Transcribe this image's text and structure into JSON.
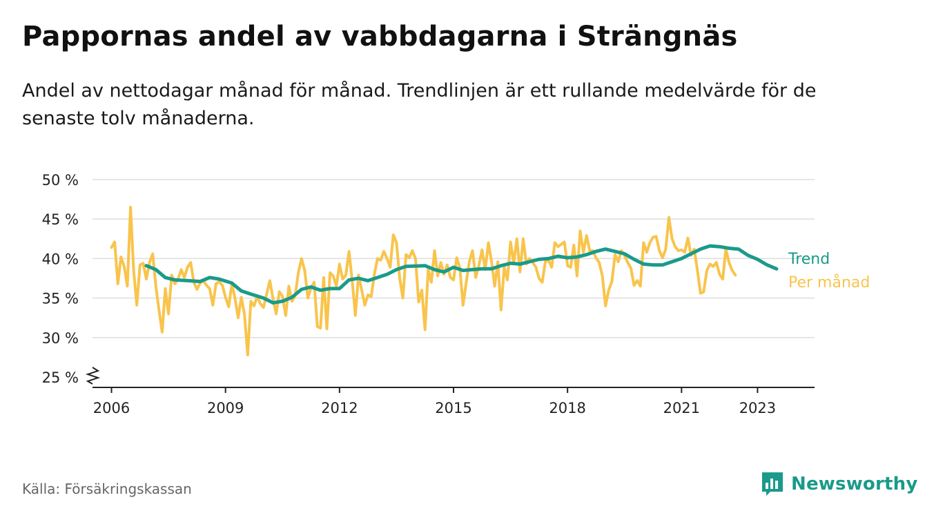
{
  "title": "Pappornas andel av vabbdagarna i Strängnäs",
  "subtitle": "Andel av nettodagar månad för månad. Trendlinjen är ett rullande medelvärde för de senaste tolv månaderna.",
  "source": "Källa: Försäkringskassan",
  "brand": "Newsworthy",
  "colors": {
    "trend": "#1a9a8a",
    "monthly": "#f8c44c",
    "grid": "#dddddd",
    "axis": "#222222",
    "brand": "#1a9a8a"
  },
  "chart_data": {
    "type": "line",
    "title": "Pappornas andel av vabbdagarna i Strängnäs",
    "xlabel": "",
    "ylabel": "",
    "ylim": [
      25,
      50
    ],
    "xlim": [
      "2005-07",
      "2024-07"
    ],
    "y_ticks": [
      "25 %",
      "30 %",
      "35 %",
      "40 %",
      "45 %",
      "50 %"
    ],
    "y_tick_values": [
      25,
      30,
      35,
      40,
      45,
      50
    ],
    "x_ticks": [
      "2006",
      "2009",
      "2012",
      "2015",
      "2018",
      "2021",
      "2023"
    ],
    "x_tick_values": [
      "2006-01",
      "2009-01",
      "2012-01",
      "2015-01",
      "2018-01",
      "2021-01",
      "2023-01"
    ],
    "y_axis_break": true,
    "grid": true,
    "legend": "direct labels at line ends (right)",
    "series": [
      {
        "name": "Trend",
        "color": "#1a9a8a",
        "points": [
          [
            "2006-12",
            39.1
          ],
          [
            "2007-03",
            38.6
          ],
          [
            "2007-06",
            37.6
          ],
          [
            "2007-09",
            37.3
          ],
          [
            "2008-01",
            37.2
          ],
          [
            "2008-05",
            37.1
          ],
          [
            "2008-08",
            37.6
          ],
          [
            "2008-11",
            37.4
          ],
          [
            "2009-03",
            36.9
          ],
          [
            "2009-06",
            35.9
          ],
          [
            "2009-09",
            35.5
          ],
          [
            "2010-01",
            35.0
          ],
          [
            "2010-04",
            34.4
          ],
          [
            "2010-07",
            34.6
          ],
          [
            "2010-10",
            35.1
          ],
          [
            "2011-01",
            36.1
          ],
          [
            "2011-04",
            36.4
          ],
          [
            "2011-07",
            36.0
          ],
          [
            "2011-10",
            36.2
          ],
          [
            "2012-01",
            36.2
          ],
          [
            "2012-04",
            37.3
          ],
          [
            "2012-07",
            37.5
          ],
          [
            "2012-10",
            37.2
          ],
          [
            "2013-01",
            37.6
          ],
          [
            "2013-04",
            38.0
          ],
          [
            "2013-07",
            38.6
          ],
          [
            "2013-10",
            39.0
          ],
          [
            "2014-04",
            39.1
          ],
          [
            "2014-07",
            38.6
          ],
          [
            "2014-10",
            38.3
          ],
          [
            "2015-01",
            38.9
          ],
          [
            "2015-04",
            38.5
          ],
          [
            "2015-07",
            38.6
          ],
          [
            "2015-10",
            38.7
          ],
          [
            "2016-01",
            38.7
          ],
          [
            "2016-04",
            39.1
          ],
          [
            "2016-07",
            39.4
          ],
          [
            "2016-10",
            39.3
          ],
          [
            "2017-01",
            39.6
          ],
          [
            "2017-04",
            39.9
          ],
          [
            "2017-07",
            40.0
          ],
          [
            "2017-10",
            40.3
          ],
          [
            "2018-01",
            40.1
          ],
          [
            "2018-04",
            40.2
          ],
          [
            "2018-07",
            40.5
          ],
          [
            "2018-10",
            40.9
          ],
          [
            "2019-01",
            41.2
          ],
          [
            "2019-04",
            40.9
          ],
          [
            "2019-07",
            40.6
          ],
          [
            "2019-10",
            39.9
          ],
          [
            "2020-01",
            39.3
          ],
          [
            "2020-04",
            39.2
          ],
          [
            "2020-07",
            39.2
          ],
          [
            "2020-10",
            39.6
          ],
          [
            "2021-01",
            40.0
          ],
          [
            "2021-04",
            40.6
          ],
          [
            "2021-07",
            41.2
          ],
          [
            "2021-10",
            41.6
          ],
          [
            "2022-01",
            41.5
          ],
          [
            "2022-04",
            41.3
          ],
          [
            "2022-07",
            41.2
          ],
          [
            "2022-10",
            40.4
          ],
          [
            "2023-01",
            39.9
          ],
          [
            "2023-04",
            39.2
          ],
          [
            "2023-07",
            38.7
          ]
        ]
      },
      {
        "name": "Per månad",
        "color": "#f8c44c",
        "points": [
          [
            "2006-01",
            41.4
          ],
          [
            "2006-02",
            42.1
          ],
          [
            "2006-03",
            36.8
          ],
          [
            "2006-04",
            40.2
          ],
          [
            "2006-05",
            39.0
          ],
          [
            "2006-06",
            36.5
          ],
          [
            "2006-07",
            46.5
          ],
          [
            "2006-08",
            38.5
          ],
          [
            "2006-09",
            34.1
          ],
          [
            "2006-10",
            39.2
          ],
          [
            "2006-11",
            39.4
          ],
          [
            "2006-12",
            37.4
          ],
          [
            "2007-01",
            39.5
          ],
          [
            "2007-02",
            40.6
          ],
          [
            "2007-03",
            36.5
          ],
          [
            "2007-04",
            33.5
          ],
          [
            "2007-05",
            30.7
          ],
          [
            "2007-06",
            36.2
          ],
          [
            "2007-07",
            33.0
          ],
          [
            "2007-08",
            37.9
          ],
          [
            "2007-09",
            36.8
          ],
          [
            "2007-10",
            37.4
          ],
          [
            "2007-11",
            38.6
          ],
          [
            "2007-12",
            37.6
          ],
          [
            "2008-01",
            38.9
          ],
          [
            "2008-02",
            39.5
          ],
          [
            "2008-03",
            37.0
          ],
          [
            "2008-04",
            36.1
          ],
          [
            "2008-05",
            36.9
          ],
          [
            "2008-06",
            37.2
          ],
          [
            "2008-07",
            36.6
          ],
          [
            "2008-08",
            36.2
          ],
          [
            "2008-09",
            34.1
          ],
          [
            "2008-10",
            36.8
          ],
          [
            "2008-11",
            37.1
          ],
          [
            "2008-12",
            36.6
          ],
          [
            "2009-01",
            35.1
          ],
          [
            "2009-02",
            33.9
          ],
          [
            "2009-03",
            36.8
          ],
          [
            "2009-04",
            35.0
          ],
          [
            "2009-05",
            32.5
          ],
          [
            "2009-06",
            35.1
          ],
          [
            "2009-07",
            32.9
          ],
          [
            "2009-08",
            27.8
          ],
          [
            "2009-09",
            34.6
          ],
          [
            "2009-10",
            34.0
          ],
          [
            "2009-11",
            35.2
          ],
          [
            "2009-12",
            34.3
          ],
          [
            "2010-01",
            33.8
          ],
          [
            "2010-02",
            35.5
          ],
          [
            "2010-03",
            37.2
          ],
          [
            "2010-04",
            34.9
          ],
          [
            "2010-05",
            33.0
          ],
          [
            "2010-06",
            35.8
          ],
          [
            "2010-07",
            35.2
          ],
          [
            "2010-08",
            32.8
          ],
          [
            "2010-09",
            36.5
          ],
          [
            "2010-10",
            34.6
          ],
          [
            "2010-11",
            35.3
          ],
          [
            "2010-12",
            38.2
          ],
          [
            "2011-01",
            40.0
          ],
          [
            "2011-02",
            38.5
          ],
          [
            "2011-03",
            35.0
          ],
          [
            "2011-04",
            36.3
          ],
          [
            "2011-05",
            37.0
          ],
          [
            "2011-06",
            31.4
          ],
          [
            "2011-07",
            31.2
          ],
          [
            "2011-08",
            37.6
          ],
          [
            "2011-09",
            31.1
          ],
          [
            "2011-10",
            38.2
          ],
          [
            "2011-11",
            37.8
          ],
          [
            "2011-12",
            36.5
          ],
          [
            "2012-01",
            39.3
          ],
          [
            "2012-02",
            37.4
          ],
          [
            "2012-03",
            37.9
          ],
          [
            "2012-04",
            40.9
          ],
          [
            "2012-05",
            37.2
          ],
          [
            "2012-06",
            32.8
          ],
          [
            "2012-07",
            37.9
          ],
          [
            "2012-08",
            36.0
          ],
          [
            "2012-09",
            34.1
          ],
          [
            "2012-10",
            35.4
          ],
          [
            "2012-11",
            35.2
          ],
          [
            "2012-12",
            38.0
          ],
          [
            "2013-01",
            40.0
          ],
          [
            "2013-02",
            39.8
          ],
          [
            "2013-03",
            40.9
          ],
          [
            "2013-04",
            40.0
          ],
          [
            "2013-05",
            38.9
          ],
          [
            "2013-06",
            43.0
          ],
          [
            "2013-07",
            42.0
          ],
          [
            "2013-08",
            37.5
          ],
          [
            "2013-09",
            35.0
          ],
          [
            "2013-10",
            40.5
          ],
          [
            "2013-11",
            40.1
          ],
          [
            "2013-12",
            41.0
          ],
          [
            "2014-01",
            40.0
          ],
          [
            "2014-02",
            34.5
          ],
          [
            "2014-03",
            36.0
          ],
          [
            "2014-04",
            31.0
          ],
          [
            "2014-05",
            38.6
          ],
          [
            "2014-06",
            37.0
          ],
          [
            "2014-07",
            41.0
          ],
          [
            "2014-08",
            37.8
          ],
          [
            "2014-09",
            39.5
          ],
          [
            "2014-10",
            38.0
          ],
          [
            "2014-11",
            39.2
          ],
          [
            "2014-12",
            37.6
          ],
          [
            "2015-01",
            37.3
          ],
          [
            "2015-02",
            40.1
          ],
          [
            "2015-03",
            38.8
          ],
          [
            "2015-04",
            34.1
          ],
          [
            "2015-05",
            37.0
          ],
          [
            "2015-06",
            39.6
          ],
          [
            "2015-07",
            41.0
          ],
          [
            "2015-08",
            37.6
          ],
          [
            "2015-09",
            39.1
          ],
          [
            "2015-10",
            41.1
          ],
          [
            "2015-11",
            38.6
          ],
          [
            "2015-12",
            42.0
          ],
          [
            "2016-01",
            39.6
          ],
          [
            "2016-02",
            36.5
          ],
          [
            "2016-03",
            39.6
          ],
          [
            "2016-04",
            33.5
          ],
          [
            "2016-05",
            38.9
          ],
          [
            "2016-06",
            37.3
          ],
          [
            "2016-07",
            42.1
          ],
          [
            "2016-08",
            39.4
          ],
          [
            "2016-09",
            42.5
          ],
          [
            "2016-10",
            38.3
          ],
          [
            "2016-11",
            42.5
          ],
          [
            "2016-12",
            39.3
          ],
          [
            "2017-01",
            40.0
          ],
          [
            "2017-02",
            39.5
          ],
          [
            "2017-03",
            38.9
          ],
          [
            "2017-04",
            37.5
          ],
          [
            "2017-05",
            37.0
          ],
          [
            "2017-06",
            39.6
          ],
          [
            "2017-07",
            39.8
          ],
          [
            "2017-08",
            38.9
          ],
          [
            "2017-09",
            42.0
          ],
          [
            "2017-10",
            41.5
          ],
          [
            "2017-11",
            41.8
          ],
          [
            "2017-12",
            42.1
          ],
          [
            "2018-01",
            39.1
          ],
          [
            "2018-02",
            38.9
          ],
          [
            "2018-03",
            41.7
          ],
          [
            "2018-04",
            37.8
          ],
          [
            "2018-05",
            43.5
          ],
          [
            "2018-06",
            40.8
          ],
          [
            "2018-07",
            42.9
          ],
          [
            "2018-08",
            41.0
          ],
          [
            "2018-09",
            41.0
          ],
          [
            "2018-10",
            40.1
          ],
          [
            "2018-11",
            39.5
          ],
          [
            "2018-12",
            37.8
          ],
          [
            "2019-01",
            34.0
          ],
          [
            "2019-02",
            36.0
          ],
          [
            "2019-03",
            37.1
          ],
          [
            "2019-04",
            40.5
          ],
          [
            "2019-05",
            39.6
          ],
          [
            "2019-06",
            41.0
          ],
          [
            "2019-07",
            40.4
          ],
          [
            "2019-08",
            39.5
          ],
          [
            "2019-09",
            38.8
          ],
          [
            "2019-10",
            36.6
          ],
          [
            "2019-11",
            37.2
          ],
          [
            "2019-12",
            36.5
          ],
          [
            "2020-01",
            42.0
          ],
          [
            "2020-02",
            40.8
          ],
          [
            "2020-03",
            42.0
          ],
          [
            "2020-04",
            42.7
          ],
          [
            "2020-05",
            42.8
          ],
          [
            "2020-06",
            41.0
          ],
          [
            "2020-07",
            40.1
          ],
          [
            "2020-08",
            41.2
          ],
          [
            "2020-09",
            45.2
          ],
          [
            "2020-10",
            42.5
          ],
          [
            "2020-11",
            41.5
          ],
          [
            "2020-12",
            41.0
          ],
          [
            "2021-01",
            41.1
          ],
          [
            "2021-02",
            40.8
          ],
          [
            "2021-03",
            42.6
          ],
          [
            "2021-04",
            40.4
          ],
          [
            "2021-05",
            41.2
          ],
          [
            "2021-06",
            38.5
          ],
          [
            "2021-07",
            35.6
          ],
          [
            "2021-08",
            35.8
          ],
          [
            "2021-09",
            38.5
          ],
          [
            "2021-10",
            39.3
          ],
          [
            "2021-11",
            39.0
          ],
          [
            "2021-12",
            39.5
          ],
          [
            "2022-01",
            38.0
          ],
          [
            "2022-02",
            37.4
          ],
          [
            "2022-03",
            41.2
          ],
          [
            "2022-04",
            39.5
          ],
          [
            "2022-05",
            38.5
          ],
          [
            "2022-06",
            37.9
          ]
        ]
      }
    ]
  }
}
